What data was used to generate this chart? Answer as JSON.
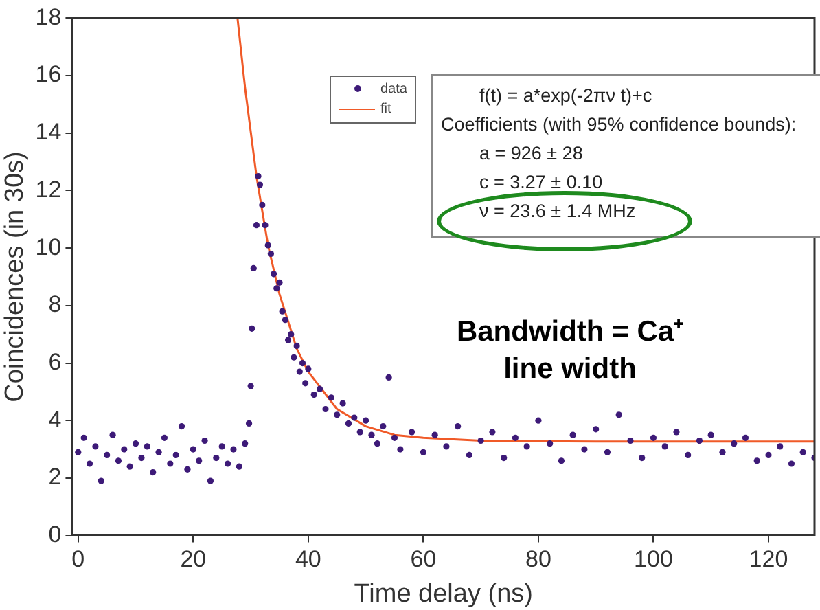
{
  "chart_data": {
    "type": "scatter",
    "xlabel": "Time delay (ns)",
    "ylabel": "Coincidences (in 30s)",
    "xlim": [
      -1,
      128
    ],
    "ylim": [
      0,
      18
    ],
    "xticks": [
      0,
      20,
      40,
      60,
      80,
      100,
      120
    ],
    "yticks": [
      0,
      2,
      4,
      6,
      8,
      10,
      12,
      14,
      16,
      18
    ],
    "grid": false,
    "legend": "top",
    "marker": "circle",
    "series": [
      {
        "name": "data",
        "color": "#3d1a78",
        "x": [
          0,
          1,
          2,
          3,
          4,
          5,
          6,
          7,
          8,
          9,
          10,
          11,
          12,
          13,
          14,
          15,
          16,
          17,
          18,
          19,
          20,
          21,
          22,
          23,
          24,
          25,
          26,
          27,
          28,
          29,
          29.7,
          30,
          30.2,
          30.5,
          31,
          31.3,
          31.6,
          32,
          32.5,
          33,
          33.5,
          34,
          34.5,
          35,
          35.5,
          36,
          36.5,
          37,
          37.5,
          38,
          38.5,
          39,
          39.5,
          40,
          41,
          42,
          43,
          44,
          45,
          46,
          47,
          48,
          49,
          50,
          51,
          52,
          53,
          54,
          55,
          56,
          58,
          60,
          62,
          64,
          66,
          68,
          70,
          72,
          74,
          76,
          78,
          80,
          82,
          84,
          86,
          88,
          90,
          92,
          94,
          96,
          98,
          100,
          102,
          104,
          106,
          108,
          110,
          112,
          114,
          116,
          118,
          120,
          122,
          124,
          126,
          128
        ],
        "values": [
          2.9,
          3.4,
          2.5,
          3.1,
          1.9,
          2.8,
          3.5,
          2.6,
          3.0,
          2.4,
          3.2,
          2.7,
          3.1,
          2.2,
          2.9,
          3.4,
          2.5,
          2.8,
          3.8,
          2.3,
          3.0,
          2.6,
          3.3,
          1.9,
          2.7,
          3.1,
          2.5,
          3.0,
          2.4,
          3.2,
          3.9,
          5.2,
          7.2,
          9.3,
          10.8,
          12.5,
          12.2,
          11.5,
          10.8,
          10.1,
          9.8,
          9.1,
          8.6,
          8.8,
          7.8,
          7.5,
          6.8,
          7.0,
          6.2,
          6.6,
          5.7,
          6.0,
          5.3,
          5.8,
          4.9,
          5.1,
          4.4,
          4.8,
          4.2,
          4.6,
          3.9,
          4.1,
          3.6,
          4.0,
          3.5,
          3.2,
          3.8,
          5.5,
          3.4,
          3.0,
          3.6,
          2.9,
          3.5,
          3.1,
          3.8,
          2.8,
          3.3,
          3.6,
          2.7,
          3.4,
          3.1,
          4.0,
          3.2,
          2.6,
          3.5,
          3.0,
          3.7,
          2.9,
          4.2,
          3.3,
          2.7,
          3.4,
          3.1,
          3.6,
          2.8,
          3.3,
          3.5,
          2.9,
          3.2,
          3.4,
          2.6,
          2.8,
          3.1,
          2.5,
          2.9,
          2.7
        ]
      },
      {
        "name": "fit",
        "type": "line",
        "color": "#f05a28",
        "marker": "none",
        "line_style": "solid",
        "x": [
          27.7,
          29,
          31,
          33,
          35,
          38,
          40,
          45,
          50,
          55,
          60,
          70,
          80,
          90,
          128
        ],
        "values": [
          18,
          15.6,
          12.5,
          10.1,
          8.4,
          6.5,
          5.7,
          4.4,
          3.8,
          3.5,
          3.4,
          3.3,
          3.28,
          3.27,
          3.27
        ]
      }
    ],
    "annotations": [
      "f(t) = a*exp(-2πν t)+c",
      "Coefficients (with 95% confidence bounds):",
      "a = 926 ± 28",
      "c = 3.27 ± 0.10",
      "ν = 23.6 ± 1.4 MHz",
      "Bandwidth = Ca⁺ line width"
    ]
  }
}
